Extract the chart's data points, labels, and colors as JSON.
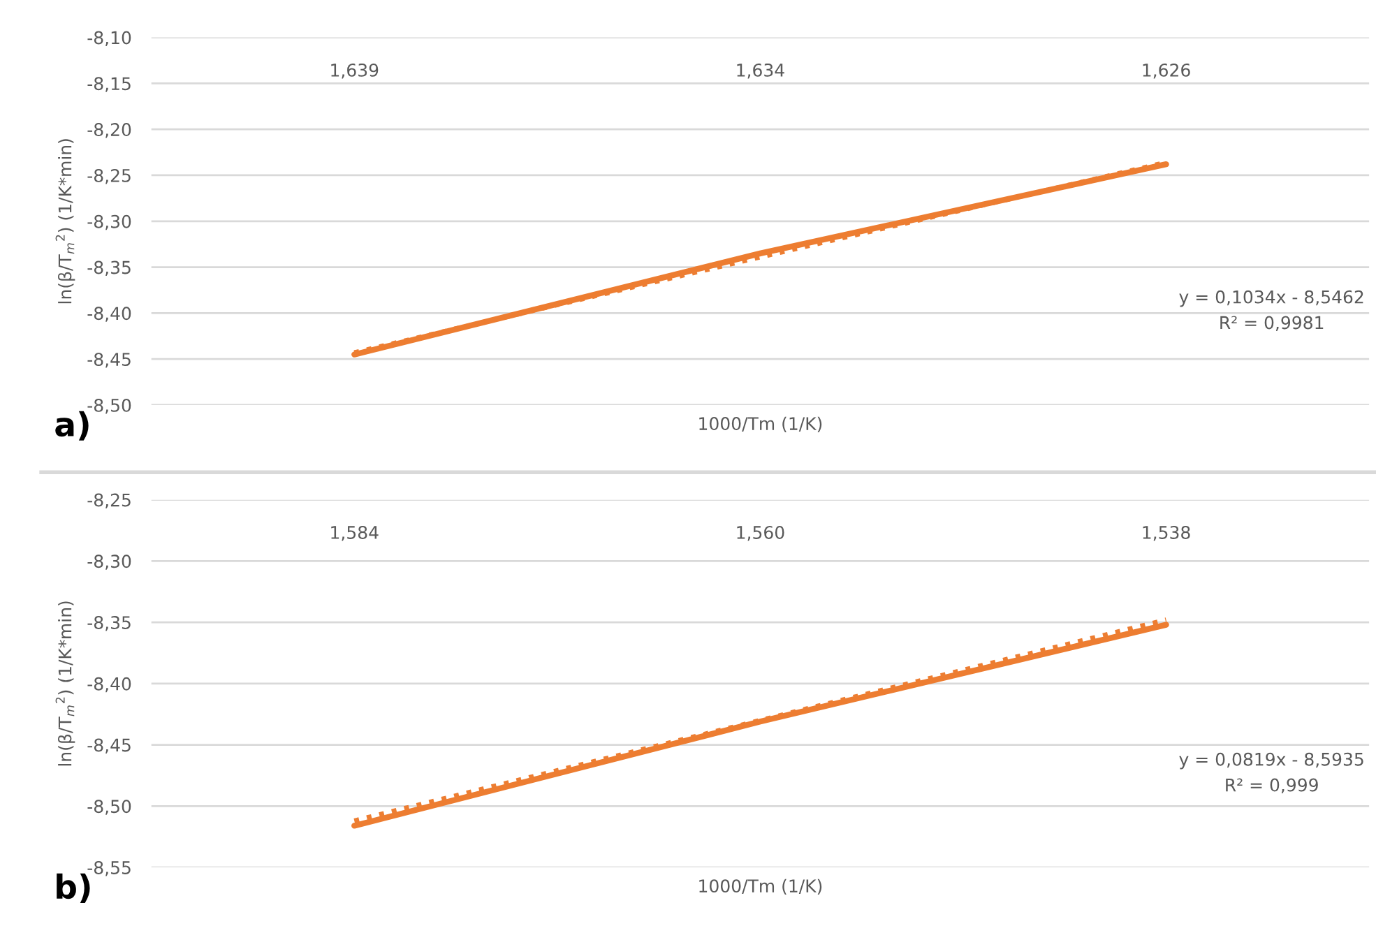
{
  "chart_data": [
    {
      "type": "line",
      "xlabel": "1000/Tm (1/K)",
      "ylabel": "ln(β/T$_{m}$$^{2}$) (1/K*min)",
      "categories": [
        "1,639",
        "1,634",
        "1,626"
      ],
      "series": [
        {
          "color": "#ed7d31",
          "values": [
            -8.445,
            -8.335,
            -8.238
          ],
          "line_style": "solid"
        },
        {
          "type": "line",
          "color": "#ed7d31",
          "values": [
            -8.443,
            -8.339,
            -8.236
          ],
          "line_style": "dotted"
        }
      ],
      "ylim": [
        -8.5,
        -8.1
      ],
      "yticks": [
        {
          "value": -8.5,
          "label": "-8,50"
        },
        {
          "value": -8.45,
          "label": "-8,45"
        },
        {
          "value": -8.4,
          "label": "-8,40"
        },
        {
          "value": -8.35,
          "label": "-8,35"
        },
        {
          "value": -8.3,
          "label": "-8,30"
        },
        {
          "value": -8.25,
          "label": "-8,25"
        },
        {
          "value": -8.2,
          "label": "-8,20"
        },
        {
          "value": -8.15,
          "label": "-8,15"
        },
        {
          "value": -8.1,
          "label": "-8,10"
        }
      ],
      "grid": "y",
      "legend": false,
      "marker": "none",
      "annotations": [
        "y = 0,1034x - 8,5462",
        "R² = 0,9981",
        "a)"
      ]
    },
    {
      "type": "line",
      "xlabel": "1000/Tm (1/K)",
      "ylabel": "ln(β/T$_{m}$$^{2}$) (1/K*min)",
      "categories": [
        "1,584",
        "1,560",
        "1,538"
      ],
      "series": [
        {
          "color": "#ed7d31",
          "values": [
            -8.516,
            -8.431,
            -8.352
          ],
          "line_style": "solid"
        },
        {
          "type": "line",
          "color": "#ed7d31",
          "values": [
            -8.512,
            -8.43,
            -8.348
          ],
          "line_style": "dotted"
        }
      ],
      "ylim": [
        -8.55,
        -8.25
      ],
      "yticks": [
        {
          "value": -8.55,
          "label": "-8,55"
        },
        {
          "value": -8.5,
          "label": "-8,50"
        },
        {
          "value": -8.45,
          "label": "-8,45"
        },
        {
          "value": -8.4,
          "label": "-8,40"
        },
        {
          "value": -8.35,
          "label": "-8,35"
        },
        {
          "value": -8.3,
          "label": "-8,30"
        },
        {
          "value": -8.25,
          "label": "-8,25"
        }
      ],
      "grid": "y",
      "legend": false,
      "marker": "none",
      "annotations": [
        "y = 0,0819x - 8,5935",
        "R² = 0,999",
        "b)"
      ]
    }
  ]
}
